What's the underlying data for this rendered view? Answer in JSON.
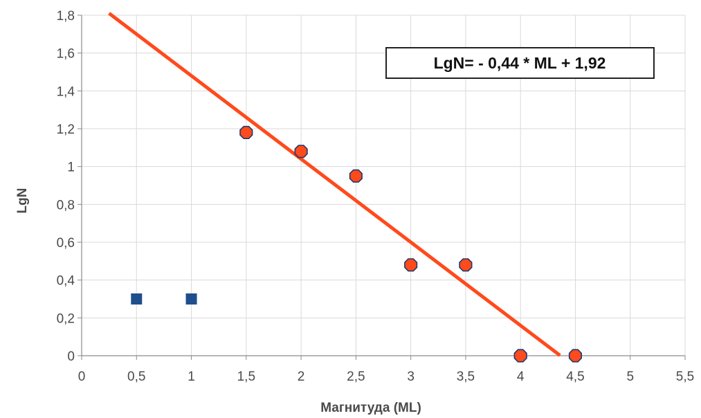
{
  "chart_data": {
    "type": "scatter",
    "xlabel": "Магнитуда (ML)",
    "ylabel": "LgN",
    "xlim": [
      0,
      5.5
    ],
    "ylim": [
      0,
      1.8
    ],
    "x_ticks": [
      "0",
      "0,5",
      "1",
      "1,5",
      "2",
      "2,5",
      "3",
      "3,5",
      "4",
      "4,5",
      "5",
      "5,5"
    ],
    "y_ticks": [
      "0",
      "0,2",
      "0,4",
      "0,6",
      "0,8",
      "1",
      "1,2",
      "1,4",
      "1,6",
      "1,8"
    ],
    "grid": true,
    "series": [
      {
        "marker": "square",
        "color": "#1f4e8c",
        "points": [
          {
            "x": 0.5,
            "y": 0.3
          },
          {
            "x": 1.0,
            "y": 0.3
          }
        ]
      },
      {
        "marker": "octagon",
        "color": "#ff4a1c",
        "points": [
          {
            "x": 1.5,
            "y": 1.18
          },
          {
            "x": 2.0,
            "y": 1.08
          },
          {
            "x": 2.5,
            "y": 0.95
          },
          {
            "x": 3.0,
            "y": 0.48
          },
          {
            "x": 3.5,
            "y": 0.48
          },
          {
            "x": 4.0,
            "y": 0.0
          },
          {
            "x": 4.5,
            "y": 0.0
          }
        ]
      }
    ],
    "trendline": {
      "slope": -0.44,
      "intercept": 1.92,
      "color": "#ff4a1c",
      "x_start": 0.25,
      "x_end": 4.36
    },
    "annotation": "LgN= - 0,44 * ML + 1,92"
  }
}
